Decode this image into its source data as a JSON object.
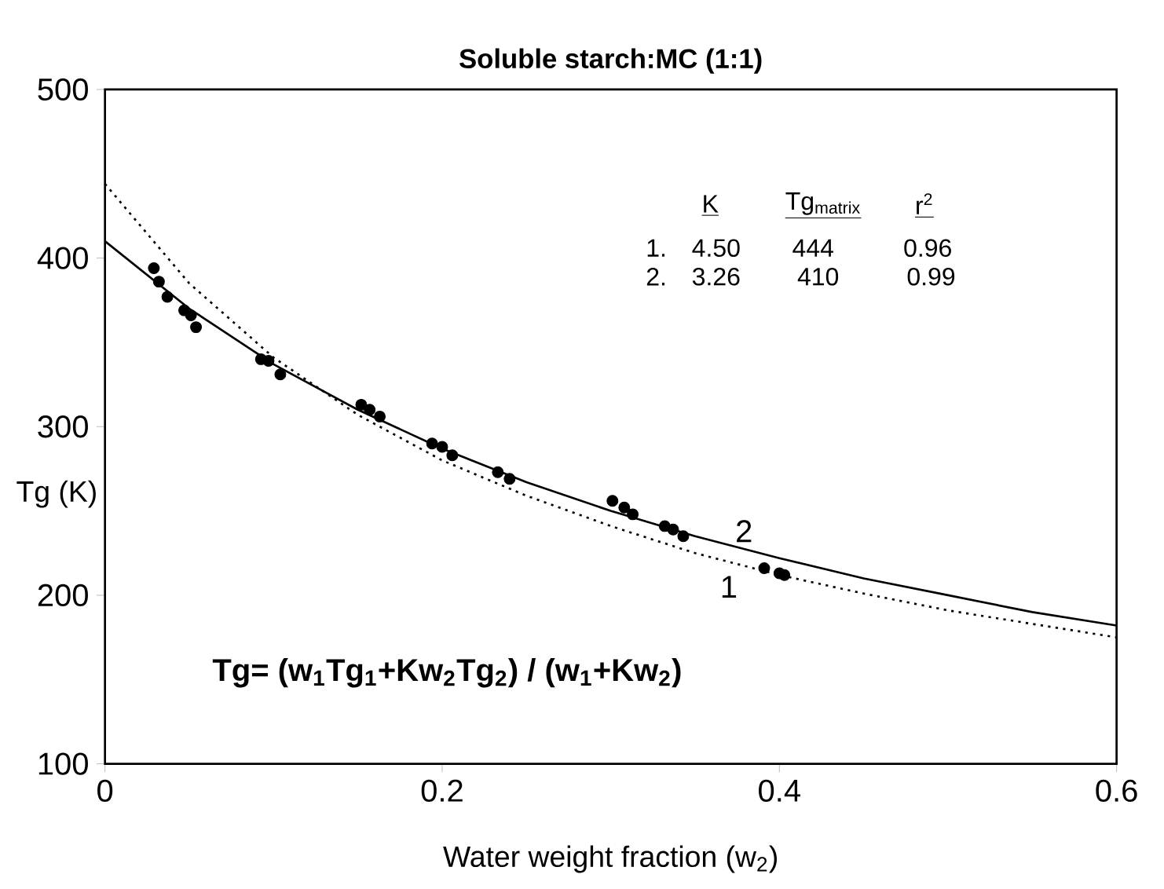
{
  "chart_data": {
    "type": "scatter",
    "title": "Soluble starch:MC (1:1)",
    "xlabel": "Water weight fraction (w$_{2}$)",
    "ylabel": "Tg (K)",
    "xlim": [
      0,
      0.6
    ],
    "ylim": [
      100,
      500
    ],
    "xticks": [
      0,
      0.2,
      0.4,
      0.6
    ],
    "yticks": [
      100,
      200,
      300,
      400,
      500
    ],
    "grid": false,
    "series": [
      {
        "marker": "circle",
        "color": "#000000",
        "x": [
          0.029,
          0.032,
          0.037,
          0.047,
          0.051,
          0.054,
          0.0925,
          0.097,
          0.104,
          0.152,
          0.157,
          0.163,
          0.194,
          0.2,
          0.206,
          0.233,
          0.24,
          0.301,
          0.308,
          0.313,
          0.332,
          0.337,
          0.343,
          0.391,
          0.4,
          0.403
        ],
        "values": [
          394,
          386,
          377,
          369,
          366,
          359,
          340,
          339,
          331,
          313,
          310,
          306,
          290,
          288,
          283,
          273,
          269,
          256,
          252,
          248,
          241,
          239,
          235,
          216,
          213,
          212
        ]
      },
      {
        "type": "line",
        "name": "1",
        "line_style": "dotted",
        "marker": "none",
        "color": "#000000",
        "x": [
          0,
          0.05,
          0.1,
          0.15,
          0.2,
          0.25,
          0.3,
          0.35,
          0.4,
          0.45,
          0.5,
          0.55,
          0.6
        ],
        "values": [
          444,
          385,
          341,
          307,
          280,
          259,
          241,
          225,
          212,
          201,
          191,
          183,
          175
        ]
      },
      {
        "type": "line",
        "name": "2",
        "line_style": "solid",
        "marker": "none",
        "color": "#000000",
        "x": [
          0,
          0.05,
          0.1,
          0.15,
          0.2,
          0.25,
          0.3,
          0.35,
          0.4,
          0.45,
          0.5,
          0.55,
          0.6
        ],
        "values": [
          410,
          370,
          337,
          310,
          287,
          267,
          250,
          235,
          222,
          210,
          200,
          190,
          182
        ]
      }
    ],
    "annotations": [
      {
        "text": "Tg= (w$_{1}$Tg$_{1}$+Kw$_{2}$Tg$_{2}$) / (w$_{1}$+Kw$_{2}$)"
      },
      {
        "text": "K"
      },
      {
        "text": "Tg$_{matrix}$"
      },
      {
        "text": "r$^{2}$"
      },
      {
        "text": "1."
      },
      {
        "text": "4.50"
      },
      {
        "text": "444"
      },
      {
        "text": "0.96"
      },
      {
        "text": "2."
      },
      {
        "text": "3.26"
      },
      {
        "text": "410"
      },
      {
        "text": "0.99"
      }
    ]
  }
}
